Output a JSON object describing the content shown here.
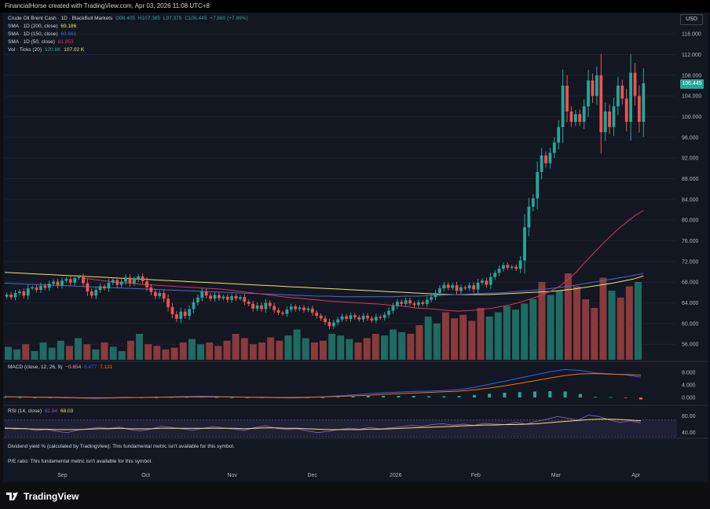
{
  "header": {
    "title": "FinancialHorse created with TradingView.com, Apr 03, 2026 11:08 UTC+8"
  },
  "legend": {
    "symbol": "Crude Oil Brent Cash · 1D · BlackBull Markets",
    "open": "O98.405",
    "high": "H107.385",
    "low": "L97.375",
    "close": "C106.445",
    "change": "+7.880 (+7.99%)",
    "sma200": {
      "label": "SMA · 1D (200, close)",
      "value": "69.186",
      "color": "#f7e35f"
    },
    "sma150": {
      "label": "SMA · 1D (150, close)",
      "value": "69.661",
      "color": "#3f6bd8"
    },
    "sma50": {
      "label": "SMA · 1D (50, close)",
      "value": "81.853",
      "color": "#e0325a"
    },
    "vol": {
      "label": "Vol · Ticks (20)",
      "value1": "120.8K",
      "value2": "107.02 K"
    }
  },
  "currency": "USD",
  "last_price": "106.445",
  "macd_legend": {
    "label": "MACD (close, 12, 26, 9)",
    "hist": "−0.654",
    "macd": "6.477",
    "signal": "7.131"
  },
  "rsi_legend": {
    "label": "RSI (14, close)",
    "rsi": "62.84",
    "ma": "68.03"
  },
  "dividend_text": "Dividend yield % (calculated by TradingView): This fundamental metric isn't available for this symbol.",
  "pe_text": "P/E ratio: This fundamental metric isn't available for this symbol.",
  "brand": "TradingView",
  "colors": {
    "up": "#26a69a",
    "down": "#ef5350",
    "macd": "#2962ff",
    "signal": "#ff6d00",
    "rsi": "#7e57c2",
    "rsi_ma": "#f7e35f"
  },
  "chart_data": {
    "type": "candlestick",
    "price_axis_ticks": [
      "116.000",
      "112.000",
      "108.000",
      "104.000",
      "100.000",
      "96.000",
      "92.000",
      "88.000",
      "84.000",
      "80.000",
      "76.000",
      "72.000",
      "68.000",
      "64.000",
      "60.000",
      "56.000"
    ],
    "macd_axis_ticks": [
      "8.000",
      "4.000",
      "0.000"
    ],
    "rsi_axis_ticks": [
      "80.00",
      "40.00"
    ],
    "time_axis_labels": [
      "Sep",
      "Oct",
      "Nov",
      "Dec",
      "2026",
      "Feb",
      "Mar",
      "Apr"
    ],
    "ylim": [
      53,
      118
    ],
    "closes": [
      65.6,
      65.1,
      65.9,
      66.2,
      65.4,
      66.8,
      67.0,
      66.5,
      67.3,
      66.9,
      67.7,
      68.1,
      67.4,
      68.3,
      68.6,
      67.9,
      68.8,
      69.0,
      67.8,
      66.2,
      65.4,
      66.5,
      67.2,
      66.8,
      67.9,
      68.4,
      67.5,
      68.1,
      68.9,
      67.8,
      68.5,
      69.1,
      68.2,
      67.0,
      66.1,
      65.3,
      65.9,
      64.8,
      63.2,
      61.8,
      60.9,
      62.3,
      61.5,
      62.8,
      64.1,
      65.0,
      66.2,
      65.4,
      64.8,
      65.5,
      64.9,
      65.2,
      64.6,
      65.3,
      64.8,
      65.1,
      64.2,
      63.8,
      62.9,
      63.5,
      62.8,
      64.0,
      63.4,
      62.6,
      62.1,
      61.9,
      62.7,
      63.3,
      62.8,
      63.1,
      62.6,
      62.9,
      62.1,
      61.5,
      61.0,
      60.3,
      59.5,
      60.2,
      60.8,
      61.4,
      60.9,
      61.6,
      61.2,
      60.8,
      61.5,
      61.0,
      60.6,
      61.3,
      61.1,
      61.7,
      62.5,
      63.4,
      64.2,
      63.8,
      64.5,
      63.9,
      63.6,
      64.1,
      63.8,
      64.6,
      65.1,
      65.9,
      66.8,
      67.5,
      66.9,
      67.4,
      66.3,
      67.0,
      66.8,
      67.4,
      66.6,
      67.9,
      68.3,
      67.5,
      69.0,
      69.8,
      70.6,
      71.3,
      70.8,
      71.0,
      70.6,
      72.2,
      78.6,
      82.6,
      84.2,
      89.3,
      92.5,
      91.0,
      93.0,
      95.0,
      98.0,
      106.0,
      101.0,
      99.0,
      100.5,
      99.0,
      102.0,
      107.0,
      104.0,
      108.0,
      97.0,
      101.0,
      98.0,
      102.0,
      106.0,
      103.5,
      99.0,
      108.5,
      104.0,
      99.0,
      106.445
    ],
    "sma50": [
      68.8,
      68.6,
      68.4,
      68.2,
      68.0,
      67.9,
      67.8,
      67.6,
      67.5,
      67.4,
      67.3,
      67.2,
      67.1,
      67.0,
      66.9,
      66.8,
      66.7,
      66.6,
      66.4,
      66.2,
      66.0,
      65.8,
      65.6,
      65.4,
      65.2,
      65.0,
      64.9,
      64.7,
      64.6,
      64.4,
      64.3,
      64.2,
      64.1,
      64.0,
      63.9,
      63.8,
      63.7,
      63.5,
      63.4,
      63.2,
      63.0,
      62.9,
      62.8,
      62.6,
      62.5,
      62.4,
      62.5,
      62.6,
      62.8,
      63.0,
      63.3,
      63.6,
      64.0,
      64.5,
      65.0,
      65.6,
      66.3,
      67.2,
      68.5,
      70.0,
      71.8,
      73.5,
      75.2,
      76.8,
      78.3,
      79.6,
      80.9,
      81.853
    ],
    "sma150": [
      67.8,
      67.7,
      67.6,
      67.5,
      67.4,
      67.3,
      67.2,
      67.1,
      67.0,
      66.9,
      66.8,
      66.7,
      66.6,
      66.5,
      66.4,
      66.3,
      66.2,
      66.1,
      66.0,
      65.9,
      65.8,
      65.7,
      65.6,
      65.5,
      65.4,
      65.3,
      65.3,
      65.2,
      65.2,
      65.2,
      65.2,
      65.2,
      65.3,
      65.3,
      65.4,
      65.5,
      65.6,
      65.7,
      65.8,
      65.9,
      66.0,
      66.2,
      66.4,
      66.6,
      66.9,
      67.2,
      67.6,
      68.0,
      68.4,
      68.8,
      69.2,
      69.661
    ],
    "sma200": [
      69.9,
      69.8,
      69.7,
      69.6,
      69.5,
      69.4,
      69.3,
      69.2,
      69.1,
      69.0,
      68.9,
      68.8,
      68.7,
      68.6,
      68.5,
      68.4,
      68.3,
      68.2,
      68.1,
      68.0,
      67.9,
      67.8,
      67.7,
      67.6,
      67.5,
      67.4,
      67.3,
      67.2,
      67.1,
      67.0,
      66.9,
      66.8,
      66.7,
      66.6,
      66.5,
      66.4,
      66.3,
      66.2,
      66.1,
      66.0,
      65.9,
      65.8,
      65.7,
      65.6,
      65.6,
      65.6,
      65.6,
      65.6,
      65.7,
      65.8,
      65.9,
      66.0,
      66.1,
      66.2,
      66.4,
      66.6,
      66.9,
      67.2,
      67.5,
      67.8,
      68.2,
      68.6,
      69.186
    ],
    "volume_level": [
      0.15,
      0.12,
      0.18,
      0.1,
      0.2,
      0.14,
      0.22,
      0.16,
      0.25,
      0.18,
      0.12,
      0.2,
      0.15,
      0.1,
      0.22,
      0.3,
      0.18,
      0.16,
      0.12,
      0.14,
      0.2,
      0.24,
      0.18,
      0.2,
      0.16,
      0.22,
      0.3,
      0.25,
      0.18,
      0.2,
      0.26,
      0.22,
      0.28,
      0.35,
      0.25,
      0.2,
      0.22,
      0.3,
      0.28,
      0.24,
      0.2,
      0.25,
      0.3,
      0.28,
      0.35,
      0.32,
      0.3,
      0.4,
      0.5,
      0.42,
      0.55,
      0.48,
      0.52,
      0.45,
      0.6,
      0.5,
      0.55,
      0.62,
      0.58,
      0.65,
      0.7,
      0.9,
      0.75,
      0.8,
      1.0,
      0.85,
      0.7,
      0.6,
      0.95,
      0.8,
      0.72,
      0.85,
      0.9
    ],
    "macd": [
      0.3,
      0.2,
      0.1,
      0.0,
      -0.1,
      -0.2,
      -0.3,
      -0.2,
      -0.1,
      0.0,
      0.1,
      0.2,
      0.3,
      0.4,
      0.3,
      0.2,
      0.1,
      0.0,
      -0.1,
      -0.2,
      0.0,
      0.2,
      0.5,
      0.8,
      1.2,
      1.5,
      1.7,
      1.9,
      2.0,
      2.2,
      2.5,
      3.2,
      4.2,
      5.2,
      6.2,
      7.2,
      8.2,
      8.9,
      8.6,
      7.8,
      7.5,
      7.2,
      6.477
    ],
    "signal": [
      0.2,
      0.2,
      0.1,
      0.1,
      0.0,
      -0.1,
      -0.1,
      -0.1,
      0.0,
      0.0,
      0.1,
      0.1,
      0.2,
      0.2,
      0.2,
      0.2,
      0.1,
      0.1,
      0.0,
      0.0,
      0.1,
      0.2,
      0.3,
      0.5,
      0.7,
      1.0,
      1.2,
      1.4,
      1.6,
      1.8,
      2.0,
      2.4,
      3.0,
      3.7,
      4.5,
      5.3,
      6.2,
      7.0,
      7.5,
      7.6,
      7.4,
      7.3,
      7.131
    ],
    "rsi": [
      52,
      48,
      50,
      45,
      47,
      43,
      40,
      46,
      49,
      52,
      50,
      53,
      47,
      44,
      48,
      55,
      52,
      49,
      46,
      50,
      54,
      51,
      48,
      45,
      52,
      56,
      50,
      47,
      49,
      44,
      40,
      43,
      47,
      50,
      48,
      52,
      49,
      51,
      54,
      57,
      55,
      59,
      61,
      58,
      60,
      57,
      62,
      60,
      59,
      64,
      60,
      67,
      72,
      78,
      74,
      70,
      82,
      78,
      70,
      64,
      68,
      62.84
    ],
    "rsi_ma": [
      50,
      50,
      49,
      48,
      48,
      47,
      47,
      47,
      48,
      49,
      49,
      50,
      49,
      49,
      49,
      50,
      50,
      50,
      50,
      50,
      50,
      50,
      50,
      49,
      50,
      51,
      51,
      50,
      50,
      49,
      48,
      47,
      47,
      47,
      47,
      48,
      48,
      49,
      50,
      51,
      52,
      53,
      54,
      55,
      56,
      57,
      58,
      58,
      59,
      59,
      60,
      61,
      63,
      65,
      67,
      69,
      71,
      72,
      72,
      71,
      70,
      68.03
    ]
  }
}
